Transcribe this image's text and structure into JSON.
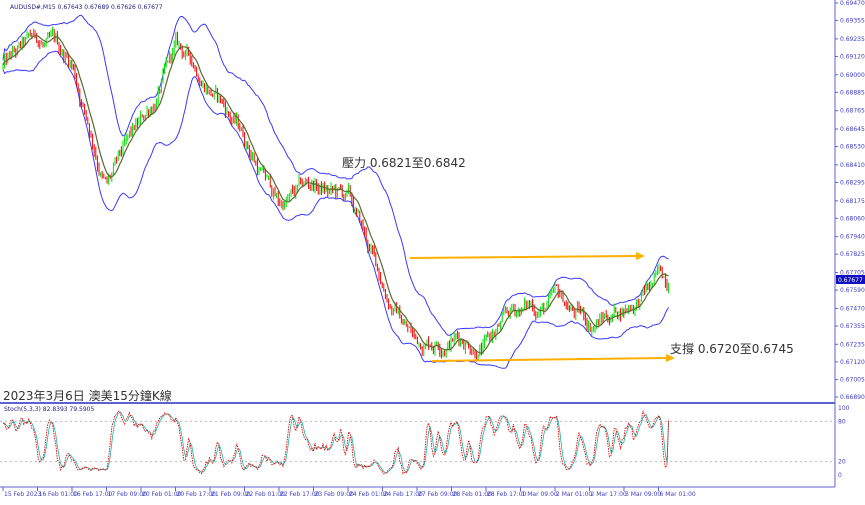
{
  "header": {
    "symbol_info": "AUDUSD#,M15  0.67643 0.67689 0.67626 0.67677",
    "stoch_info": "Stoch(5,3,3) 82.8393 79.5905"
  },
  "annotations": {
    "title": "2023年3月6日 澳美15分鐘K線",
    "resistance": "壓力 0.6821至0.6842",
    "support": "支撐 0.6720至0.6745"
  },
  "colors": {
    "bull": "#00dd00",
    "bear": "#ee0000",
    "bollinger": "#3a3aff",
    "ma": "#556b2f",
    "stoch_main": "#e00000",
    "stoch_signal": "#20b0a0",
    "trendline": "#ffb000",
    "axis": "#6060d0",
    "price_tag": "#1010c0"
  },
  "chart_data": {
    "type": "candlestick",
    "symbol": "AUDUSD#",
    "timeframe": "M15",
    "current_price": "0.67677",
    "price_ticks": [
      "0.69470",
      "0.69355",
      "0.69235",
      "0.69120",
      "0.69000",
      "0.68885",
      "0.68765",
      "0.68645",
      "0.68530",
      "0.68410",
      "0.68295",
      "0.68175",
      "0.68060",
      "0.67940",
      "0.67825",
      "0.67705",
      "0.67590",
      "0.67470",
      "0.67355",
      "0.67235",
      "0.67120",
      "0.67005",
      "0.66890"
    ],
    "ylim": [
      0.6689,
      0.6947
    ],
    "time_ticks": [
      "15 Feb 2023",
      "16 Feb 01:00",
      "16 Feb 17:00",
      "17 Feb 09:00",
      "20 Feb 01:00",
      "20 Feb 17:00",
      "21 Feb 09:00",
      "22 Feb 01:00",
      "22 Feb 17:00",
      "23 Feb 09:00",
      "24 Feb 01:00",
      "24 Feb 17:00",
      "27 Feb 09:00",
      "28 Feb 01:00",
      "28 Feb 17:00",
      "1 Mar 09:00",
      "2 Mar 01:00",
      "2 Mar 17:00",
      "3 Mar 09:00",
      "6 Mar 01:00"
    ],
    "approx_close_at_ticks": [
      0.6905,
      0.6918,
      0.6905,
      0.683,
      0.686,
      0.6912,
      0.6895,
      0.686,
      0.6815,
      0.6825,
      0.6815,
      0.676,
      0.6725,
      0.6735,
      0.6728,
      0.6745,
      0.675,
      0.6735,
      0.675,
      0.6765
    ],
    "last_close": 0.67677,
    "indicators": [
      "Bollinger Bands",
      "Moving Average",
      "Stochastic(5,3,3)"
    ],
    "resistance_zone": [
      0.6821,
      0.6842
    ],
    "support_zone": [
      0.672,
      0.6745
    ],
    "stoch_levels": [
      "100",
      "80",
      "20",
      "0"
    ],
    "stoch_values": [
      82.8393,
      79.5905
    ]
  }
}
